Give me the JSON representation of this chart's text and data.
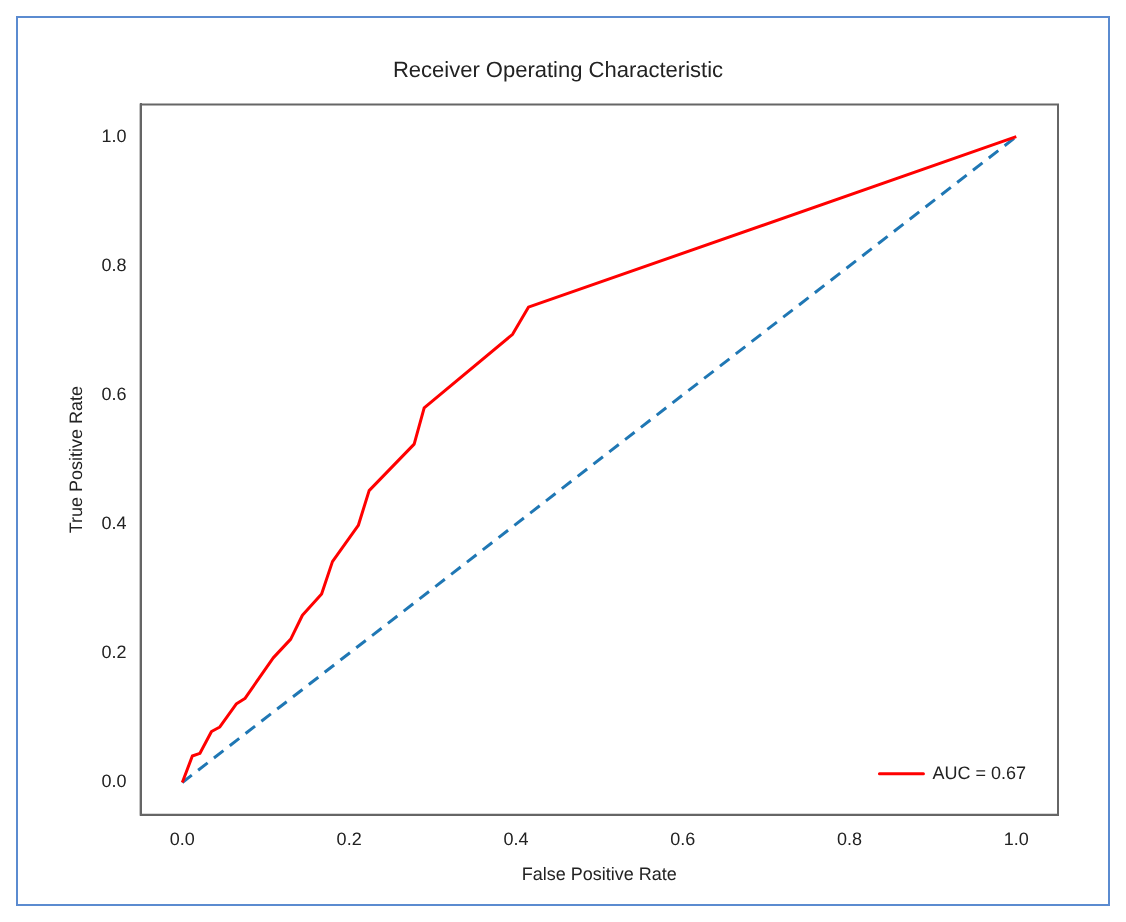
{
  "chart_data": {
    "type": "line",
    "title": "Receiver Operating Characteristic",
    "xlabel": "False Positive Rate",
    "ylabel": "True Positive Rate",
    "xlim": [
      -0.05,
      1.05
    ],
    "ylim": [
      -0.05,
      1.05
    ],
    "xticks": [
      {
        "value": 0,
        "label": "0.0"
      },
      {
        "value": 0.2,
        "label": "0.2"
      },
      {
        "value": 0.4,
        "label": "0.4"
      },
      {
        "value": 0.6,
        "label": "0.6"
      },
      {
        "value": 0.8,
        "label": "0.8"
      },
      {
        "value": 1,
        "label": "1.0"
      }
    ],
    "yticks": [
      {
        "value": 0,
        "label": "0.0"
      },
      {
        "value": 0.2,
        "label": "0.2"
      },
      {
        "value": 0.4,
        "label": "0.4"
      },
      {
        "value": 0.6,
        "label": "0.6"
      },
      {
        "value": 0.8,
        "label": "0.8"
      },
      {
        "value": 1,
        "label": "1.0"
      }
    ],
    "legend": "bottom right",
    "grid": false,
    "series": [
      {
        "name": "AUC = 0.67",
        "color": "#ff0000",
        "line_style": "solid",
        "x": [
          0,
          0.012,
          0.021,
          0.035,
          0.045,
          0.065,
          0.075,
          0.109,
          0.13,
          0.144,
          0.167,
          0.18,
          0.211,
          0.224,
          0.278,
          0.29,
          0.396,
          0.415,
          1
        ],
        "values": [
          0,
          0.041,
          0.045,
          0.079,
          0.086,
          0.122,
          0.13,
          0.193,
          0.222,
          0.259,
          0.292,
          0.342,
          0.398,
          0.452,
          0.524,
          0.58,
          0.694,
          0.736,
          1
        ]
      },
      {
        "color": "#1f77b4",
        "line_style": "dashed",
        "x": [
          0,
          1
        ],
        "values": [
          0,
          1
        ]
      }
    ]
  }
}
